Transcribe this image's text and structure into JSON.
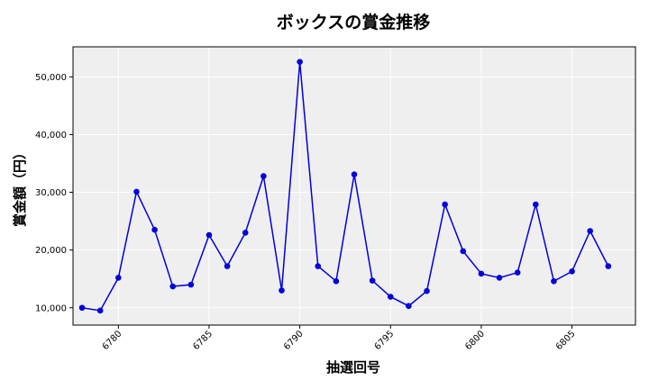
{
  "chart_data": {
    "type": "line",
    "title": "ボックスの賞金推移",
    "xlabel": "抽選回号",
    "ylabel": "賞金額（円）",
    "x": [
      6778,
      6779,
      6780,
      6781,
      6782,
      6783,
      6784,
      6785,
      6786,
      6787,
      6788,
      6789,
      6790,
      6791,
      6792,
      6793,
      6794,
      6795,
      6796,
      6797,
      6798,
      6799,
      6800,
      6801,
      6802,
      6803,
      6804,
      6805,
      6806,
      6807
    ],
    "series": [
      {
        "values": [
          10000,
          9500,
          15200,
          30100,
          23500,
          13700,
          14000,
          22600,
          17200,
          23000,
          32800,
          13000,
          52600,
          17200,
          14600,
          33100,
          14700,
          11900,
          10300,
          12900,
          27900,
          19800,
          15900,
          15200,
          16100,
          27900,
          14600,
          16300,
          23300,
          17200
        ],
        "color": "#0000dd"
      }
    ],
    "xlim": [
      6777.5,
      6808.5
    ],
    "ylim": [
      7000,
      55200
    ],
    "x_ticks": [
      6780,
      6785,
      6790,
      6795,
      6800,
      6805
    ],
    "y_ticks": [
      10000,
      20000,
      30000,
      40000,
      50000
    ],
    "y_tick_labels": [
      "10,000",
      "20,000",
      "30,000",
      "40,000",
      "50,000"
    ],
    "grid": true,
    "background": "#efefef",
    "grid_color": "#ffffff"
  }
}
